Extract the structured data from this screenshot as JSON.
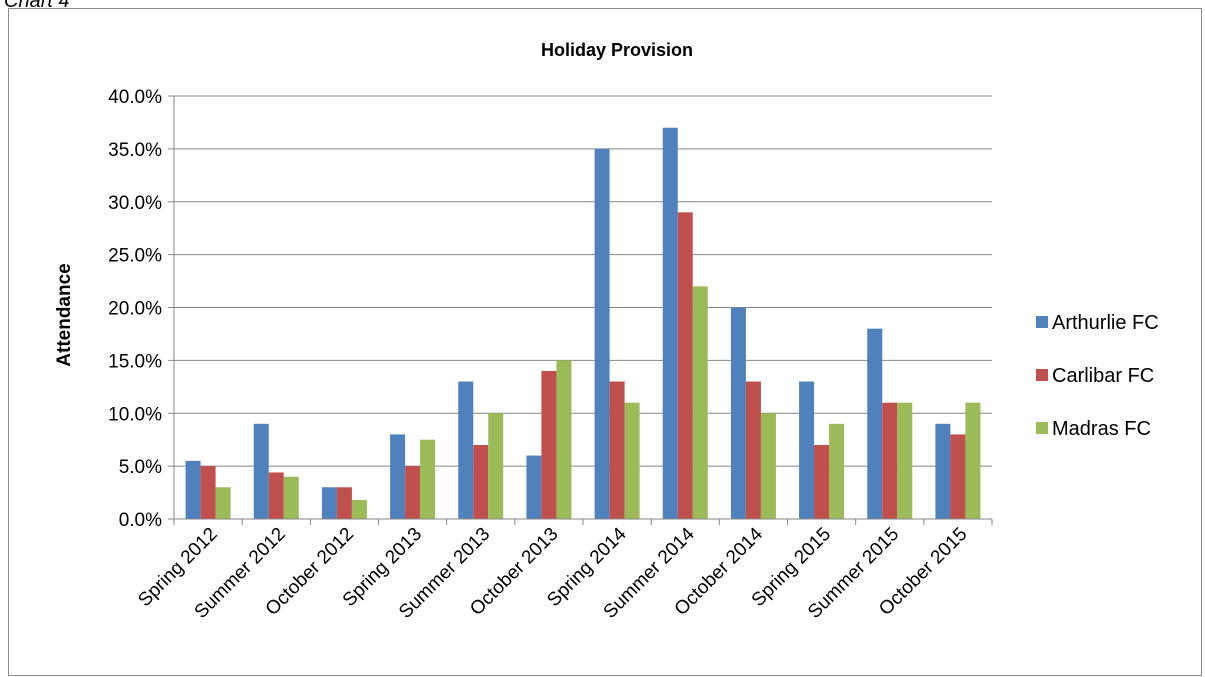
{
  "caption": "Chart 4",
  "chart_data": {
    "type": "bar",
    "title": "Holiday Provision",
    "xlabel": "",
    "ylabel": "Attendance",
    "ylim": [
      0,
      0.4
    ],
    "yticks": [
      0,
      0.05,
      0.1,
      0.15,
      0.2,
      0.25,
      0.3,
      0.35,
      0.4
    ],
    "ytick_labels": [
      "0.0%",
      "5.0%",
      "10.0%",
      "15.0%",
      "20.0%",
      "25.0%",
      "30.0%",
      "35.0%",
      "40.0%"
    ],
    "grid": true,
    "legend_position": "right",
    "categories": [
      "Spring 2012",
      "Summer 2012",
      "October 2012",
      "Spring 2013",
      "Summer 2013",
      "October 2013",
      "Spring 2014",
      "Summer 2014",
      "October 2014",
      "Spring 2015",
      "Summer 2015",
      "October 2015"
    ],
    "series": [
      {
        "name": "Arthurlie FC",
        "color": "#4f81bd",
        "values": [
          0.055,
          0.09,
          0.03,
          0.08,
          0.13,
          0.06,
          0.35,
          0.37,
          0.2,
          0.13,
          0.18,
          0.09
        ]
      },
      {
        "name": "Carlibar FC",
        "color": "#c0504d",
        "values": [
          0.05,
          0.044,
          0.03,
          0.05,
          0.07,
          0.14,
          0.13,
          0.29,
          0.13,
          0.07,
          0.11,
          0.08
        ]
      },
      {
        "name": "Madras FC",
        "color": "#9bbb59",
        "values": [
          0.03,
          0.04,
          0.018,
          0.075,
          0.1,
          0.15,
          0.11,
          0.22,
          0.1,
          0.09,
          0.11,
          0.11
        ]
      }
    ]
  }
}
